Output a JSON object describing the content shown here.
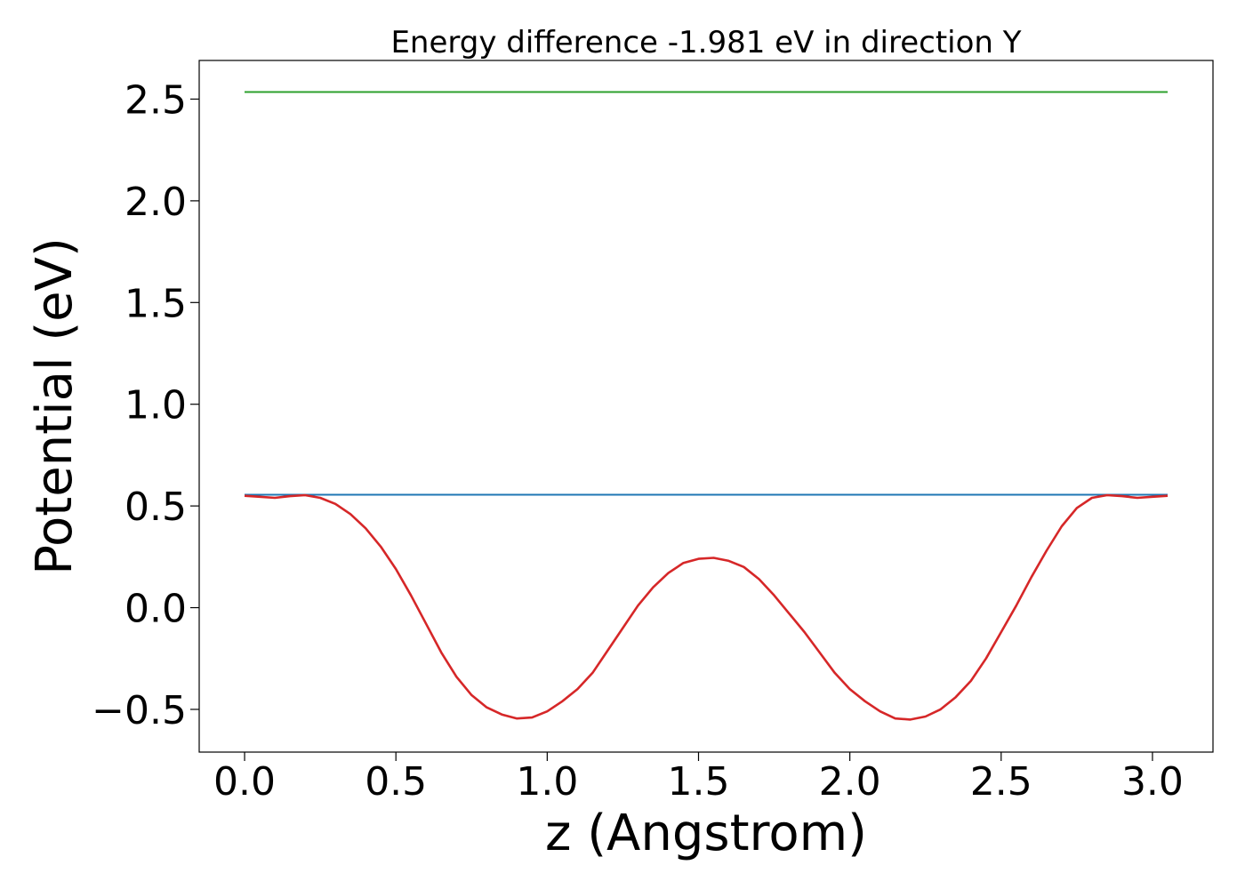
{
  "chart_data": {
    "type": "line",
    "title": "Energy difference -1.981 eV in direction Y",
    "xlabel": "z (Angstrom)",
    "ylabel": "Potential (eV)",
    "xlim": [
      -0.15,
      3.2
    ],
    "ylim": [
      -0.71,
      2.69
    ],
    "grid": false,
    "x_ticks": [
      0.0,
      0.5,
      1.0,
      1.5,
      2.0,
      2.5,
      3.0
    ],
    "x_tick_labels": [
      "0.0",
      "0.5",
      "1.0",
      "1.5",
      "2.0",
      "2.5",
      "3.0"
    ],
    "y_ticks": [
      -0.5,
      0.0,
      0.5,
      1.0,
      1.5,
      2.0,
      2.5
    ],
    "y_tick_labels": [
      "−0.5",
      "0.0",
      "0.5",
      "1.0",
      "1.5",
      "2.0",
      "2.5"
    ],
    "series": [
      {
        "color": "#2ca02c",
        "x": [
          0.0,
          3.05
        ],
        "y": [
          2.535,
          2.535
        ]
      },
      {
        "color": "#1f77b4",
        "x": [
          0.0,
          3.05
        ],
        "y": [
          0.555,
          0.555
        ]
      },
      {
        "color": "#d62728",
        "x": [
          0.0,
          0.05,
          0.1,
          0.15,
          0.2,
          0.25,
          0.3,
          0.35,
          0.4,
          0.45,
          0.5,
          0.55,
          0.6,
          0.65,
          0.7,
          0.75,
          0.8,
          0.85,
          0.9,
          0.95,
          1.0,
          1.05,
          1.1,
          1.15,
          1.2,
          1.25,
          1.3,
          1.35,
          1.4,
          1.45,
          1.5,
          1.55,
          1.6,
          1.65,
          1.7,
          1.75,
          1.8,
          1.85,
          1.9,
          1.95,
          2.0,
          2.05,
          2.1,
          2.15,
          2.2,
          2.25,
          2.3,
          2.35,
          2.4,
          2.45,
          2.5,
          2.55,
          2.6,
          2.65,
          2.7,
          2.75,
          2.8,
          2.85,
          2.9,
          2.95,
          3.0,
          3.05
        ],
        "y": [
          0.55,
          0.545,
          0.54,
          0.548,
          0.553,
          0.54,
          0.51,
          0.46,
          0.39,
          0.3,
          0.19,
          0.06,
          -0.08,
          -0.22,
          -0.34,
          -0.43,
          -0.49,
          -0.525,
          -0.545,
          -0.54,
          -0.51,
          -0.46,
          -0.4,
          -0.32,
          -0.21,
          -0.1,
          0.01,
          0.1,
          0.17,
          0.22,
          0.24,
          0.245,
          0.23,
          0.2,
          0.14,
          0.06,
          -0.03,
          -0.12,
          -0.22,
          -0.32,
          -0.4,
          -0.46,
          -0.51,
          -0.545,
          -0.55,
          -0.535,
          -0.5,
          -0.44,
          -0.36,
          -0.25,
          -0.12,
          0.01,
          0.15,
          0.28,
          0.4,
          0.49,
          0.54,
          0.553,
          0.548,
          0.54,
          0.545,
          0.55
        ]
      }
    ]
  }
}
